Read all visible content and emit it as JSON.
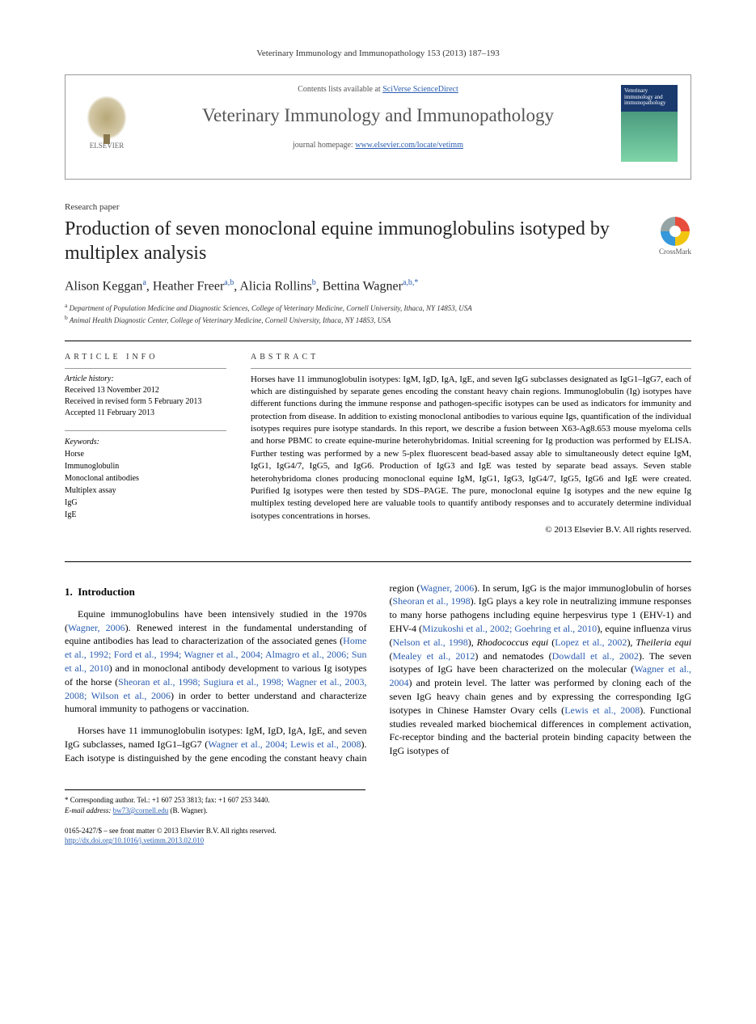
{
  "header": {
    "citation": "Veterinary Immunology and Immunopathology 153 (2013) 187–193",
    "contents_prefix": "Contents lists available at ",
    "contents_link": "SciVerse ScienceDirect",
    "journal_name": "Veterinary Immunology and Immunopathology",
    "homepage_prefix": "journal homepage: ",
    "homepage_link": "www.elsevier.com/locate/vetimm",
    "elsevier_label": "ELSEVIER",
    "cover_text": "Veterinary immunology and immunopathology"
  },
  "article": {
    "type": "Research paper",
    "title": "Production of seven monoclonal equine immunoglobulins isotyped by multiplex analysis",
    "crossmark": "CrossMark",
    "authors_html": "Alison Keggan<sup>a</sup>, Heather Freer<sup>a,b</sup>, Alicia Rollins<sup>b</sup>, Bettina Wagner<sup>a,b,*</sup>",
    "affiliations": [
      "Department of Population Medicine and Diagnostic Sciences, College of Veterinary Medicine, Cornell University, Ithaca, NY 14853, USA",
      "Animal Health Diagnostic Center, College of Veterinary Medicine, Cornell University, Ithaca, NY 14853, USA"
    ],
    "aff_markers": [
      "a",
      "b"
    ]
  },
  "info": {
    "heading": "ARTICLE INFO",
    "history_label": "Article history:",
    "history": [
      "Received 13 November 2012",
      "Received in revised form 5 February 2013",
      "Accepted 11 February 2013"
    ],
    "keywords_label": "Keywords:",
    "keywords": [
      "Horse",
      "Immunoglobulin",
      "Monoclonal antibodies",
      "Multiplex assay",
      "IgG",
      "IgE"
    ]
  },
  "abstract": {
    "heading": "ABSTRACT",
    "text": "Horses have 11 immunoglobulin isotypes: IgM, IgD, IgA, IgE, and seven IgG subclasses designated as IgG1–IgG7, each of which are distinguished by separate genes encoding the constant heavy chain regions. Immunoglobulin (Ig) isotypes have different functions during the immune response and pathogen-specific isotypes can be used as indicators for immunity and protection from disease. In addition to existing monoclonal antibodies to various equine Igs, quantification of the individual isotypes requires pure isotype standards. In this report, we describe a fusion between X63-Ag8.653 mouse myeloma cells and horse PBMC to create equine-murine heterohybridomas. Initial screening for Ig production was performed by ELISA. Further testing was performed by a new 5-plex fluorescent bead-based assay able to simultaneously detect equine IgM, IgG1, IgG4/7, IgG5, and IgG6. Production of IgG3 and IgE was tested by separate bead assays. Seven stable heterohybridoma clones producing monoclonal equine IgM, IgG1, IgG3, IgG4/7, IgG5, IgG6 and IgE were created. Purified Ig isotypes were then tested by SDS–PAGE. The pure, monoclonal equine Ig isotypes and the new equine Ig multiplex testing developed here are valuable tools to quantify antibody responses and to accurately determine individual isotypes concentrations in horses.",
    "copyright": "© 2013 Elsevier B.V. All rights reserved."
  },
  "body": {
    "section_number": "1.",
    "section_title": "Introduction",
    "col1_p1": "Equine immunoglobulins have been intensively studied in the 1970s (",
    "col1_p1_ref1": "Wagner, 2006",
    "col1_p1_b": "). Renewed interest in the fundamental understanding of equine antibodies has lead to characterization of the associated genes (",
    "col1_p1_ref2": "Home et al., 1992; Ford et al., 1994; Wagner et al., 2004; Almagro et al., 2006; Sun et al., 2010",
    "col1_p1_c": ") and in monoclonal antibody development to various Ig isotypes of the horse (",
    "col1_p1_ref3": "Sheoran et al., 1998; Sugiura et al., 1998; Wagner et al., 2003, 2008; Wilson et al., 2006",
    "col1_p1_d": ") in order to better understand and characterize humoral immunity to pathogens or vaccination.",
    "col1_p2": "Horses have 11 immunoglobulin isotypes: IgM, IgD, IgA, IgE, and seven IgG subclasses, named IgG1–IgG7 (",
    "col1_p2_ref": "Wagner",
    "col2_ref1": "et al., 2004; Lewis et al., 2008",
    "col2_a": "). Each isotype is distinguished by the gene encoding the constant heavy chain region (",
    "col2_ref2": "Wagner, 2006",
    "col2_b": "). In serum, IgG is the major immunoglobulin of horses (",
    "col2_ref3": "Sheoran et al., 1998",
    "col2_c": "). IgG plays a key role in neutralizing immune responses to many horse pathogens including equine herpesvirus type 1 (EHV-1) and EHV-4 (",
    "col2_ref4": "Mizukoshi et al., 2002; Goehring et al., 2010",
    "col2_d": "), equine influenza virus (",
    "col2_ref5": "Nelson et al., 1998",
    "col2_e": "), ",
    "col2_e_i": "Rhodococcus equi",
    "col2_f": " (",
    "col2_ref6": "Lopez et al., 2002",
    "col2_g": "), ",
    "col2_g_i": "Theileria equi",
    "col2_h": " (",
    "col2_ref7": "Mealey et al., 2012",
    "col2_i": ") and nematodes (",
    "col2_ref8": "Dowdall et al., 2002",
    "col2_j": "). The seven isotypes of IgG have been characterized on the molecular (",
    "col2_ref9": "Wagner et al., 2004",
    "col2_k": ") and protein level. The latter was performed by cloning each of the seven IgG heavy chain genes and by expressing the corresponding IgG isotypes in Chinese Hamster Ovary cells (",
    "col2_ref10": "Lewis et al., 2008",
    "col2_l": "). Functional studies revealed marked biochemical differences in complement activation, Fc-receptor binding and the bacterial protein binding capacity between the IgG isotypes of"
  },
  "footnote": {
    "corr": "Corresponding author. Tel.: +1 607 253 3813; fax: +1 607 253 3440.",
    "email_label": "E-mail address:",
    "email": "bw73@cornell.edu",
    "email_suffix": "(B. Wagner)."
  },
  "footer": {
    "issn": "0165-2427/$ – see front matter © 2013 Elsevier B.V. All rights reserved.",
    "doi_url": "http://dx.doi.org/10.1016/j.vetimm.2013.02.010"
  },
  "colors": {
    "link": "#2a5db0",
    "text": "#000000",
    "border": "#999999",
    "cover_top": "#1a3a6e",
    "cover_bottom": "#7fd4a8"
  }
}
